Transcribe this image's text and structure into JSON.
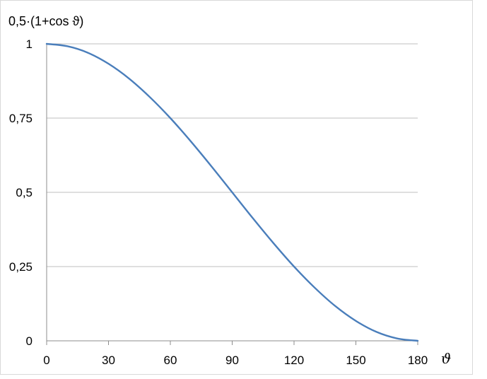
{
  "chart_data": {
    "type": "line",
    "title": "",
    "ylabel": "0,5·(1+cos ϑ)",
    "xlabel": "ϑ",
    "xlim": [
      0,
      180
    ],
    "ylim": [
      0,
      1
    ],
    "x_ticks": [
      0,
      30,
      60,
      90,
      120,
      150,
      180
    ],
    "x_tick_labels": [
      "0",
      "30",
      "60",
      "90",
      "120",
      "150",
      "180"
    ],
    "y_ticks": [
      0,
      0.25,
      0.5,
      0.75,
      1
    ],
    "y_tick_labels": [
      "0",
      "0,25",
      "0,5",
      "0,75",
      "1"
    ],
    "grid": "horizontal",
    "legend": "none",
    "series": [
      {
        "color": "#4a7ebb",
        "x": [
          0,
          10,
          20,
          30,
          40,
          50,
          60,
          70,
          80,
          90,
          100,
          110,
          120,
          130,
          140,
          150,
          160,
          170,
          180
        ],
        "values": [
          1,
          0.992,
          0.97,
          0.933,
          0.883,
          0.821,
          0.75,
          0.671,
          0.587,
          0.5,
          0.413,
          0.329,
          0.25,
          0.179,
          0.117,
          0.067,
          0.03,
          0.008,
          0
        ]
      }
    ]
  },
  "colors": {
    "line": "#4a7ebb",
    "grid": "#bfbfbf",
    "axis": "#8c8c8c",
    "frame": "#d9d9d9"
  }
}
